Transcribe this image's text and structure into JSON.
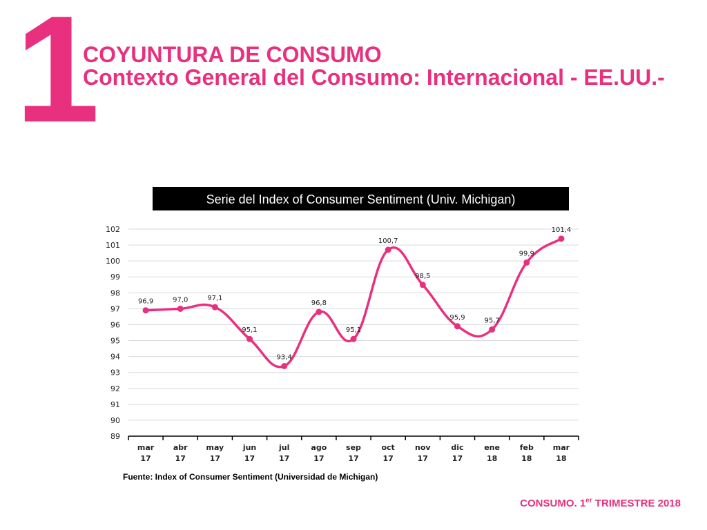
{
  "slide": {
    "number": "1",
    "title": "COYUNTURA DE CONSUMO",
    "subtitle": "Contexto General del Consumo: Internacional - EE.UU.-",
    "footer_pre": "CONSUMO. 1",
    "footer_sup": "er",
    "footer_post": " TRIMESTRE 2018",
    "source": "Fuente:  Index of Consumer Sentiment (Universidad de Michigan)"
  },
  "chart_data": {
    "type": "line",
    "title": "Serie del Index of Consumer Sentiment (Univ. Michigan)",
    "categories": [
      [
        "mar",
        "17"
      ],
      [
        "abr",
        "17"
      ],
      [
        "may",
        "17"
      ],
      [
        "jun",
        "17"
      ],
      [
        "jul",
        "17"
      ],
      [
        "ago",
        "17"
      ],
      [
        "sep",
        "17"
      ],
      [
        "oct",
        "17"
      ],
      [
        "nov",
        "17"
      ],
      [
        "dic",
        "17"
      ],
      [
        "ene",
        "18"
      ],
      [
        "feb",
        "18"
      ],
      [
        "mar",
        "18"
      ]
    ],
    "values": [
      96.9,
      97.0,
      97.1,
      95.1,
      93.4,
      96.8,
      95.1,
      100.7,
      98.5,
      95.9,
      95.7,
      99.9,
      101.4
    ],
    "labels": [
      "96,9",
      "97,0",
      "97,1",
      "95,1",
      "93,4",
      "96,8",
      "95,1",
      "100,7",
      "98,5",
      "95,9",
      "95,7",
      "99,9",
      "101,4"
    ],
    "ylim": [
      89,
      102
    ],
    "yticks": [
      89,
      90,
      91,
      92,
      93,
      94,
      95,
      96,
      97,
      98,
      99,
      100,
      101,
      102
    ],
    "grid": true,
    "line_color": "#e8307f"
  }
}
